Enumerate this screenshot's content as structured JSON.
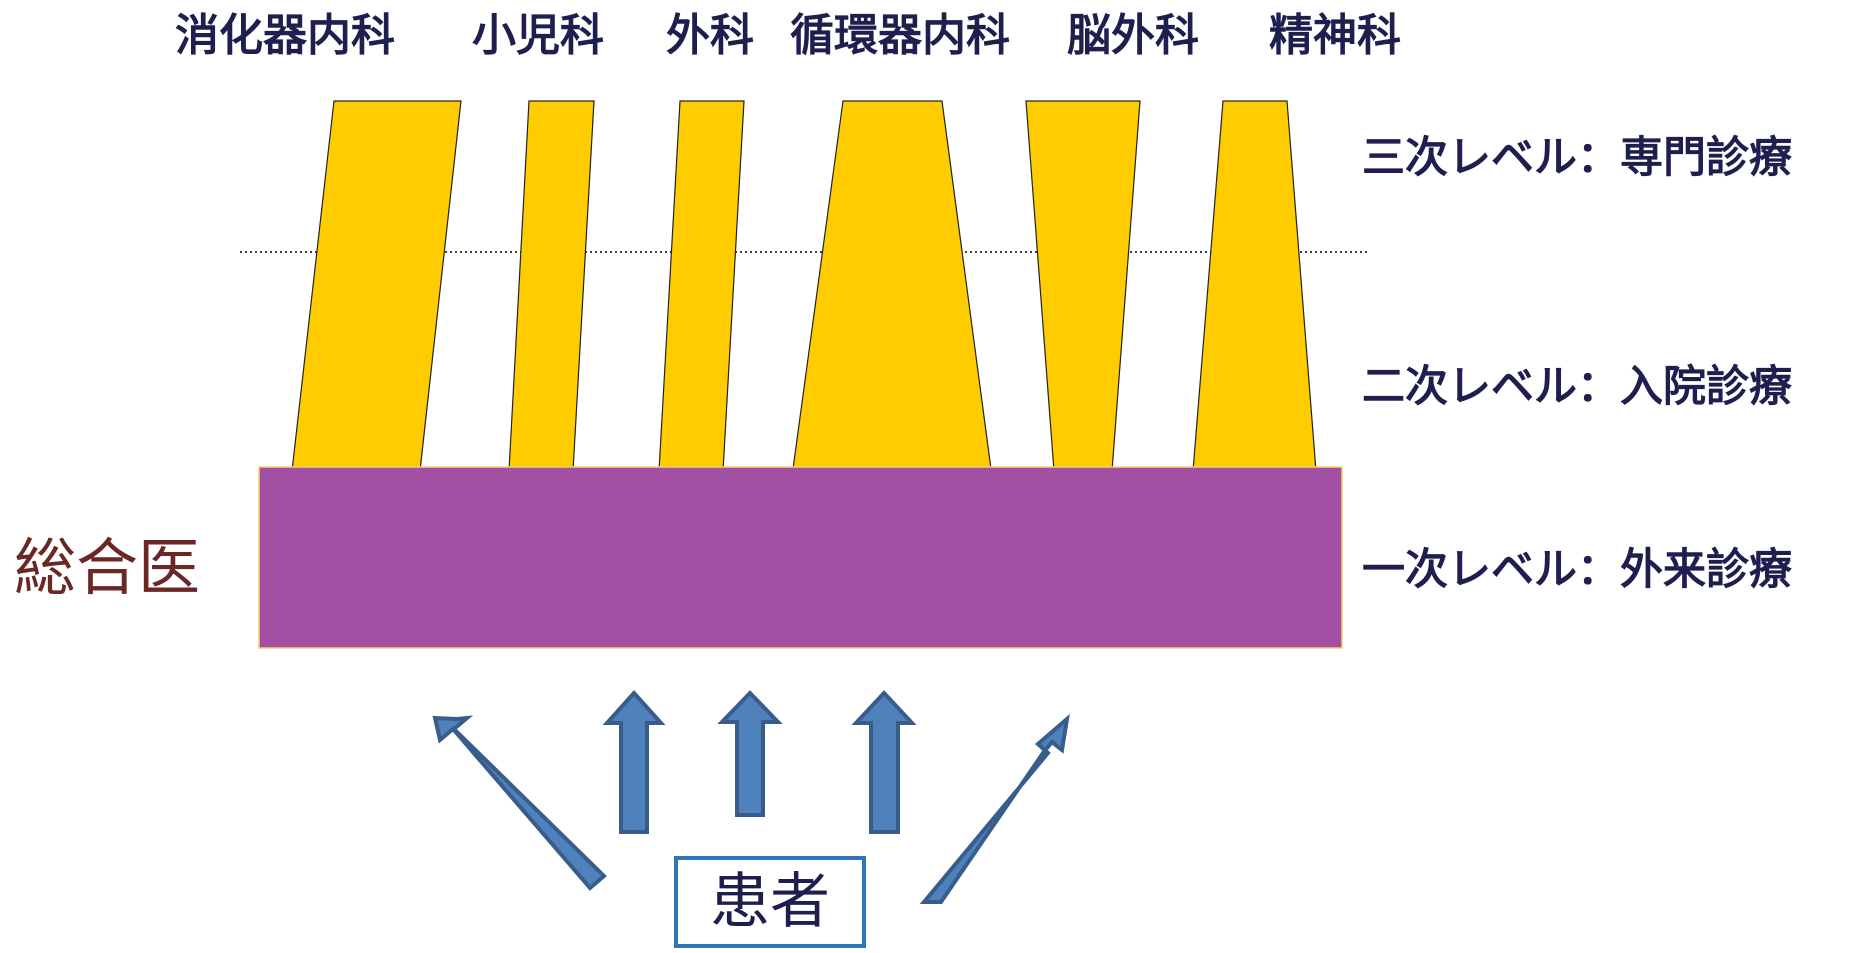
{
  "departments": [
    {
      "label": "消化器内科"
    },
    {
      "label": "小児科"
    },
    {
      "label": "外科"
    },
    {
      "label": "循環器内科"
    },
    {
      "label": "脳外科"
    },
    {
      "label": "精神科"
    }
  ],
  "levels": [
    {
      "label": "三次レベル：専門診療"
    },
    {
      "label": "二次レベル：入院診療"
    },
    {
      "label": "一次レベル：外来診療"
    }
  ],
  "general_practitioner": {
    "label": "総合医"
  },
  "patient": {
    "label": "患者"
  },
  "colors": {
    "specialty": "#ffcc00",
    "primary": "#a34fa3",
    "arrow_fill": "#4f81bd",
    "arrow_stroke": "#385d8a",
    "patient_border": "#2e75b6",
    "text_navy": "#1f1f4f",
    "text_brown": "#6b2626"
  }
}
